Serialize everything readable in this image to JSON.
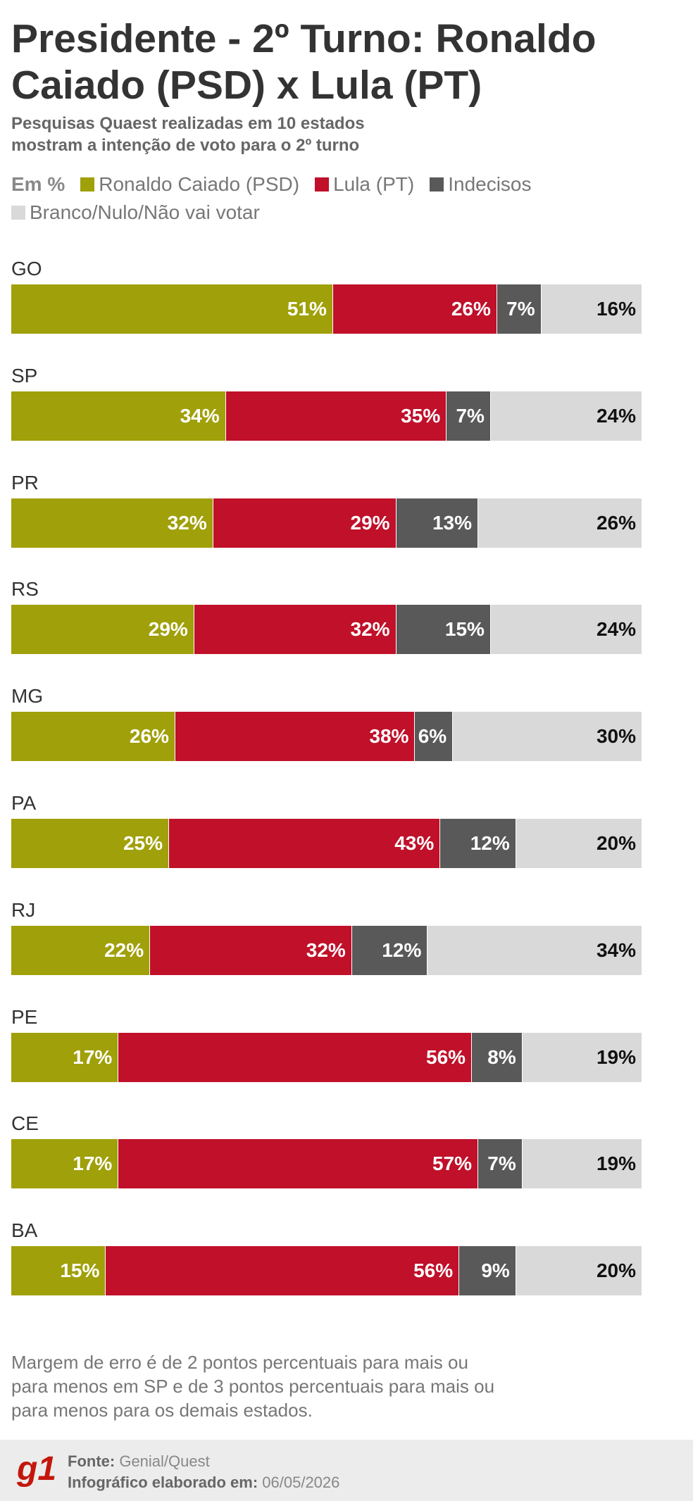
{
  "chart_data": {
    "type": "stacked-bar",
    "title": "Presidente - 2º Turno: Ronaldo Caiado (PSD) x Lula (PT)",
    "subtitle": "Pesquisas Quaest realizadas em 10 estados mostram a intenção de voto para o 2º turno",
    "unit_label": "Em %",
    "categories": [
      "GO",
      "SP",
      "PR",
      "RS",
      "MG",
      "PA",
      "RJ",
      "PE",
      "CE",
      "BA"
    ],
    "xlim": [
      0,
      100
    ],
    "series": [
      {
        "name": "Ronaldo Caiado (PSD)",
        "color": "#a0a00a",
        "values": [
          51,
          34,
          32,
          29,
          26,
          25,
          22,
          17,
          17,
          15
        ],
        "value_labels": [
          "51%",
          "34%",
          "32%",
          "29%",
          "26%",
          "25%",
          "22%",
          "17%",
          "17%",
          "15%"
        ]
      },
      {
        "name": "Lula (PT)",
        "color": "#c0102a",
        "values": [
          26,
          35,
          29,
          32,
          38,
          43,
          32,
          56,
          57,
          56
        ],
        "value_labels": [
          "26%",
          "35%",
          "29%",
          "32%",
          "38%",
          "43%",
          "32%",
          "56%",
          "57%",
          "56%"
        ]
      },
      {
        "name": "Indecisos",
        "color": "#595959",
        "values": [
          7,
          7,
          13,
          15,
          6,
          12,
          12,
          8,
          7,
          9
        ],
        "value_labels": [
          "7%",
          "7%",
          "13%",
          "15%",
          "6%",
          "12%",
          "12%",
          "8%",
          "7%",
          "9%"
        ]
      },
      {
        "name": "Branco/Nulo/Não vai votar",
        "color": "#d9d9d9",
        "values": [
          16,
          24,
          26,
          24,
          30,
          20,
          34,
          19,
          19,
          20
        ],
        "value_labels": [
          "16%",
          "24%",
          "26%",
          "24%",
          "30%",
          "20%",
          "34%",
          "19%",
          "19%",
          "20%"
        ]
      }
    ],
    "note": "Margem de erro é de 2 pontos percentuais para mais ou para menos em SP e de 3 pontos percentuais para mais ou para menos para os demais estados."
  },
  "footer": {
    "logo": "g1",
    "source_label": "Fonte:",
    "source": "Genial/Quest",
    "date_label": "Infográfico elaborado em:",
    "date": "06/05/2026"
  }
}
